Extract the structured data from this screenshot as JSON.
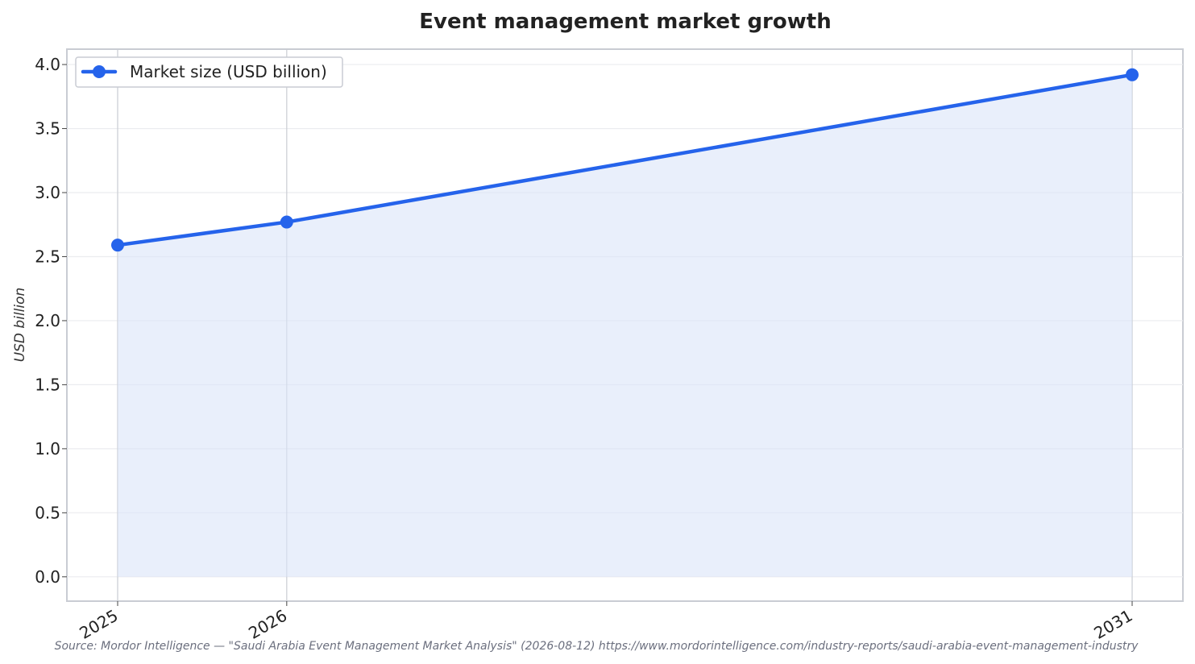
{
  "chart_data": {
    "type": "line",
    "title": "Event management market growth",
    "xlabel": "",
    "ylabel": "USD billion",
    "categories": [
      "2025",
      "2026",
      "2031"
    ],
    "x": [
      2025,
      2026,
      2031
    ],
    "series": [
      {
        "name": "Market size (USD billion)",
        "values": [
          2.59,
          2.77,
          3.92
        ],
        "color": "#2563eb"
      }
    ],
    "area_fill_color": "#e8eefb",
    "ylim": [
      -0.19,
      4.12
    ],
    "yticks": [
      "0.0",
      "0.5",
      "1.0",
      "1.5",
      "2.0",
      "2.5",
      "3.0",
      "3.5",
      "4.0"
    ],
    "grid": true,
    "legend_position": "top-left",
    "source": "Source: Mordor Intelligence — \"Saudi Arabia Event Management Market Analysis\" (2026-08-12) https://www.mordorintelligence.com/industry-reports/saudi-arabia-event-management-industry"
  }
}
